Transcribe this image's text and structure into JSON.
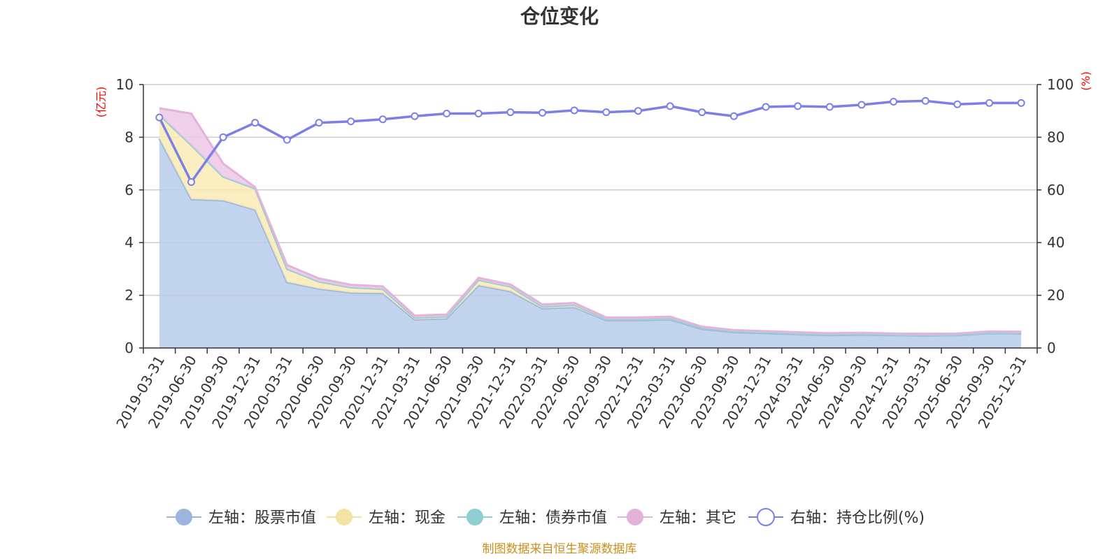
{
  "chart_data": {
    "type": "area",
    "title": "仓位变化",
    "x": [
      "2019-03-31",
      "2019-06-30",
      "2019-09-30",
      "2019-12-31",
      "2020-03-31",
      "2020-06-30",
      "2020-09-30",
      "2020-12-31",
      "2021-03-31",
      "2021-06-30",
      "2021-09-30",
      "2021-12-31",
      "2022-03-31",
      "2022-06-30",
      "2022-09-30",
      "2022-12-31",
      "2023-03-31",
      "2023-06-30",
      "2023-09-30",
      "2023-12-31",
      "2024-03-31",
      "2024-06-30",
      "2024-09-30",
      "2024-12-31",
      "2025-03-31",
      "2025-06-30",
      "2025-09-30",
      "2025-12-31"
    ],
    "left_axis": {
      "unit": "(亿元)",
      "ylim": [
        0,
        10
      ],
      "ticks": [
        "0",
        "2",
        "4",
        "6",
        "8",
        "10"
      ]
    },
    "right_axis": {
      "unit": "(%)",
      "ylim": [
        0,
        100
      ],
      "ticks": [
        "0",
        "20",
        "40",
        "60",
        "80",
        "100"
      ]
    },
    "stacked": true,
    "grid": true,
    "legend_position": "bottom",
    "series": [
      {
        "name": "左轴：股票市值",
        "axis": "left",
        "kind": "stacked-area",
        "color": "#9bb5de",
        "fill": "#b7cbea",
        "values": [
          7.95,
          5.65,
          5.6,
          5.25,
          2.5,
          2.25,
          2.1,
          2.08,
          1.08,
          1.12,
          2.38,
          2.15,
          1.5,
          1.55,
          1.05,
          1.05,
          1.08,
          0.72,
          0.6,
          0.56,
          0.52,
          0.48,
          0.5,
          0.48,
          0.47,
          0.48,
          0.56,
          0.55
        ]
      },
      {
        "name": "左轴：现金",
        "axis": "left",
        "kind": "stacked-area",
        "color": "#f5e3a3",
        "fill": "#f9eab5",
        "values": [
          0.9,
          2.05,
          0.9,
          0.8,
          0.5,
          0.27,
          0.2,
          0.16,
          0.07,
          0.07,
          0.2,
          0.18,
          0.07,
          0.08,
          0.05,
          0.05,
          0.05,
          0.04,
          0.03,
          0.03,
          0.03,
          0.03,
          0.03,
          0.02,
          0.02,
          0.02,
          0.02,
          0.02
        ]
      },
      {
        "name": "左轴：债券市值",
        "axis": "left",
        "kind": "stacked-area",
        "color": "#8ecfd4",
        "fill": "#a9dde0",
        "values": [
          0,
          0,
          0,
          0,
          0,
          0,
          0,
          0,
          0,
          0,
          0,
          0,
          0,
          0,
          0,
          0,
          0,
          0,
          0,
          0,
          0,
          0,
          0,
          0,
          0,
          0,
          0,
          0
        ]
      },
      {
        "name": "左轴：其它",
        "axis": "left",
        "kind": "stacked-area",
        "color": "#e3b3da",
        "fill": "#ecc7e6",
        "values": [
          0.25,
          1.2,
          0.5,
          0.05,
          0.15,
          0.12,
          0.1,
          0.1,
          0.08,
          0.08,
          0.08,
          0.08,
          0.08,
          0.08,
          0.06,
          0.06,
          0.06,
          0.05,
          0.05,
          0.05,
          0.05,
          0.05,
          0.05,
          0.05,
          0.05,
          0.05,
          0.05,
          0.05
        ]
      },
      {
        "name": "右轴：持仓比例(%)",
        "axis": "right",
        "kind": "line",
        "color": "#7b7fe8",
        "values": [
          87.5,
          63,
          80,
          85.5,
          79,
          85.5,
          86,
          86.8,
          88,
          89,
          89,
          89.5,
          89.3,
          90.2,
          89.5,
          90,
          91.8,
          89.5,
          88,
          91.5,
          91.8,
          91.5,
          92.3,
          93.5,
          93.8,
          92.5,
          93,
          93
        ]
      }
    ],
    "source_note": "制图数据来自恒生聚源数据库"
  }
}
